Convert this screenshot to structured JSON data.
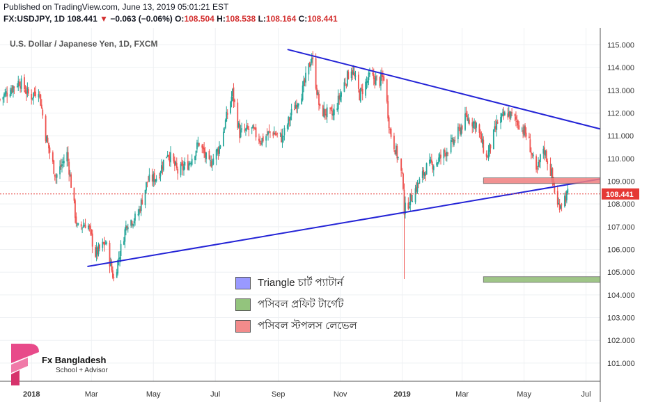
{
  "header": {
    "published": "Published on TradingView.com, June 13, 2019 05:01:21 EST",
    "symbol": "FX:USDJPY, 1D",
    "last": "108.441",
    "arrow": "▼",
    "change": "−0.063 (−0.06%)",
    "o_label": "O:",
    "o_value": "108.504",
    "h_label": "H:",
    "h_value": "108.538",
    "l_label": "L:",
    "l_value": "108.164",
    "c_label": "C:",
    "c_value": "108.441"
  },
  "chart_data": {
    "type": "candlestick",
    "title": "U.S. Dollar / Japanese Yen, 1D, FXCM",
    "yaxis": {
      "ticks": [
        "115.000",
        "114.000",
        "113.000",
        "112.000",
        "111.000",
        "110.000",
        "109.000",
        "108.000",
        "107.000",
        "106.000",
        "105.000",
        "104.000",
        "103.000",
        "102.000",
        "101.000"
      ],
      "range": [
        100.2,
        115.75
      ]
    },
    "xaxis": {
      "ticks": [
        "2018",
        "Mar",
        "May",
        "Jul",
        "Sep",
        "Nov",
        "2019",
        "Mar",
        "May",
        "Jul"
      ],
      "tick_dates": [
        "2018-01-01",
        "2018-03-01",
        "2018-05-01",
        "2018-07-01",
        "2018-09-01",
        "2018-11-01",
        "2019-01-01",
        "2019-03-01",
        "2019-05-01",
        "2019-07-01"
      ],
      "range": [
        "2017-12-01",
        "2019-07-15"
      ]
    },
    "last_price": 108.441,
    "last_price_label": "108.441",
    "close_path": [
      [
        "2017-12-01",
        112.6
      ],
      [
        "2017-12-10",
        113.0
      ],
      [
        "2017-12-20",
        113.4
      ],
      [
        "2017-12-31",
        112.7
      ],
      [
        "2018-01-08",
        113.1
      ],
      [
        "2018-01-15",
        111.0
      ],
      [
        "2018-01-25",
        109.2
      ],
      [
        "2018-02-05",
        110.2
      ],
      [
        "2018-02-15",
        106.9
      ],
      [
        "2018-02-25",
        107.2
      ],
      [
        "2018-03-05",
        105.8
      ],
      [
        "2018-03-15",
        106.3
      ],
      [
        "2018-03-23",
        104.7
      ],
      [
        "2018-04-05",
        107.2
      ],
      [
        "2018-04-15",
        107.4
      ],
      [
        "2018-04-25",
        109.0
      ],
      [
        "2018-05-05",
        109.2
      ],
      [
        "2018-05-15",
        110.3
      ],
      [
        "2018-05-25",
        109.4
      ],
      [
        "2018-06-05",
        109.8
      ],
      [
        "2018-06-15",
        110.7
      ],
      [
        "2018-06-25",
        109.7
      ],
      [
        "2018-07-05",
        110.5
      ],
      [
        "2018-07-18",
        112.9
      ],
      [
        "2018-07-25",
        111.1
      ],
      [
        "2018-08-05",
        111.3
      ],
      [
        "2018-08-15",
        110.8
      ],
      [
        "2018-08-25",
        111.2
      ],
      [
        "2018-09-05",
        110.9
      ],
      [
        "2018-09-15",
        112.1
      ],
      [
        "2018-09-25",
        113.0
      ],
      [
        "2018-10-04",
        114.5
      ],
      [
        "2018-10-12",
        112.1
      ],
      [
        "2018-10-25",
        111.9
      ],
      [
        "2018-11-05",
        113.3
      ],
      [
        "2018-11-12",
        114.0
      ],
      [
        "2018-11-20",
        112.8
      ],
      [
        "2018-11-30",
        113.6
      ],
      [
        "2018-12-10",
        113.4
      ],
      [
        "2018-12-14",
        113.6
      ],
      [
        "2018-12-20",
        111.2
      ],
      [
        "2018-12-28",
        110.0
      ],
      [
        "2019-01-02",
        108.9
      ],
      [
        "2019-01-03",
        107.7
      ],
      [
        "2019-01-10",
        108.3
      ],
      [
        "2019-01-25",
        109.6
      ],
      [
        "2019-02-05",
        109.9
      ],
      [
        "2019-02-20",
        110.7
      ],
      [
        "2019-03-05",
        111.8
      ],
      [
        "2019-03-15",
        111.5
      ],
      [
        "2019-03-25",
        110.0
      ],
      [
        "2019-04-05",
        111.6
      ],
      [
        "2019-04-15",
        112.0
      ],
      [
        "2019-04-25",
        111.6
      ],
      [
        "2019-05-05",
        110.9
      ],
      [
        "2019-05-13",
        109.3
      ],
      [
        "2019-05-20",
        110.5
      ],
      [
        "2019-05-28",
        109.3
      ],
      [
        "2019-06-03",
        107.9
      ],
      [
        "2019-06-13",
        108.44
      ]
    ],
    "annotations": [
      {
        "kind": "trendline",
        "color": "#2323d6",
        "from": [
          "2018-02-25",
          105.25
        ],
        "to": [
          "2019-07-15",
          109.1
        ]
      },
      {
        "kind": "trendline",
        "color": "#2323d6",
        "from": [
          "2018-09-10",
          114.8
        ],
        "to": [
          "2019-07-15",
          111.3
        ]
      },
      {
        "kind": "zone",
        "color": "#f08080",
        "from": [
          "2019-03-22",
          108.9
        ],
        "to": [
          "2019-07-15",
          109.15
        ]
      },
      {
        "kind": "zone",
        "color": "#8fbc74",
        "from": [
          "2019-03-22",
          104.55
        ],
        "to": [
          "2019-07-15",
          104.8
        ]
      }
    ],
    "colors": {
      "up": "#26a69a",
      "down": "#ef5350",
      "price_line": "#e53935",
      "grid": "#eef0f3"
    }
  },
  "legend": {
    "items": [
      {
        "label": "Triangle চার্ট প্যাটার্ন",
        "color": "#9999ff"
      },
      {
        "label": "পসিবল প্রফিট টার্গেট",
        "color": "#93c47d"
      },
      {
        "label": "পসিবল স্টপলস লেভেল",
        "color": "#f28b8b"
      }
    ]
  },
  "branding": {
    "name": "Fx Bangladesh",
    "tagline": "School + Advisor",
    "logo_icon": "fx-bangladesh-logo-icon",
    "logo_color": "#e84a8a"
  }
}
